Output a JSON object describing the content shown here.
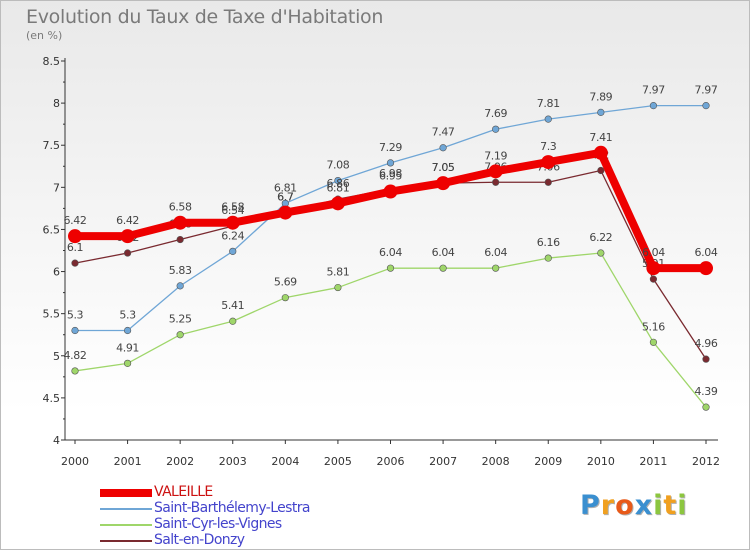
{
  "title": "Evolution du Taux de Taxe d'Habitation",
  "subtitle": "(en %)",
  "logo": {
    "letters": [
      "P",
      "r",
      "o",
      "x",
      "i",
      "t",
      "i"
    ],
    "colors": [
      "#3a8fd0",
      "#f0a020",
      "#e85a1a",
      "#3a8fd0",
      "#8cc63f",
      "#f0a020",
      "#8cc63f"
    ]
  },
  "chart_data": {
    "type": "line",
    "x": [
      "2000",
      "2001",
      "2002",
      "2003",
      "2004",
      "2005",
      "2006",
      "2007",
      "2008",
      "2009",
      "2010",
      "2011",
      "2012"
    ],
    "ylim": [
      4,
      8.5
    ],
    "yticks": [
      "4",
      "4.5",
      "5",
      "5.5",
      "6",
      "6.5",
      "7",
      "7.5",
      "8",
      "8.5"
    ],
    "grid": false,
    "legend_position": "bottom-left",
    "series": [
      {
        "name": "Saint-Barthélemy-Lestra",
        "color": "#6fa6d6",
        "values": [
          5.3,
          5.3,
          5.83,
          6.24,
          6.81,
          7.08,
          7.29,
          7.47,
          7.69,
          7.81,
          7.89,
          7.97,
          7.97
        ],
        "labels": [
          "5.3",
          "5.3",
          "5.83",
          "6.24",
          "6.81",
          "7.08",
          "7.29",
          "7.47",
          "7.69",
          "7.81",
          "7.89",
          "7.97",
          "7.97"
        ]
      },
      {
        "name": "Saint-Cyr-les-Vignes",
        "color": "#9fd66a",
        "values": [
          4.82,
          4.91,
          5.25,
          5.41,
          5.69,
          5.81,
          6.04,
          6.04,
          6.04,
          6.16,
          6.22,
          5.16,
          4.39
        ],
        "labels": [
          "4.82",
          "4.91",
          "5.25",
          "5.41",
          "5.69",
          "5.81",
          "6.04",
          "6.04",
          "6.04",
          "6.16",
          "6.22",
          "5.16",
          "4.39"
        ]
      },
      {
        "name": "Salt-en-Donzy",
        "color": "#7a2a30",
        "values": [
          6.1,
          6.22,
          6.38,
          6.54,
          6.7,
          6.86,
          6.98,
          7.05,
          7.06,
          7.06,
          7.2,
          5.91,
          4.96
        ],
        "labels": [
          "6.1",
          "6.22",
          "6.38",
          "6.54",
          "6.7",
          "6.86",
          "6.98",
          "7.05",
          "7.06",
          "7.06",
          "7.2",
          "5.91",
          "4.96"
        ]
      },
      {
        "name": "VALEILLE",
        "color": "#ee0000",
        "values": [
          6.42,
          6.42,
          6.58,
          6.58,
          6.7,
          6.81,
          6.95,
          7.05,
          7.19,
          7.3,
          7.41,
          6.04,
          6.04
        ],
        "labels": [
          "6.42",
          "6.42",
          "6.58",
          "6.58",
          "6.7",
          "6.81",
          "6.95",
          "7.05",
          "7.19",
          "7.3",
          "7.41",
          "6.04",
          "6.04"
        ]
      }
    ],
    "legend_order": [
      "VALEILLE",
      "Saint-Barthélemy-Lestra",
      "Saint-Cyr-les-Vignes",
      "Salt-en-Donzy"
    ]
  }
}
